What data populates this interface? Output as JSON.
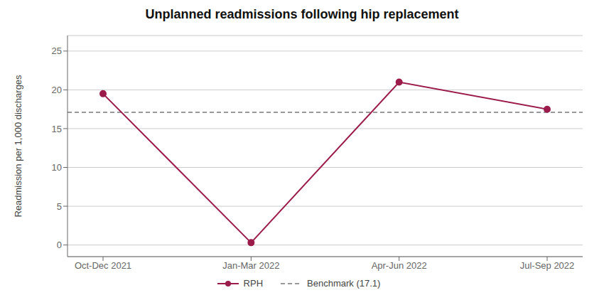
{
  "chart_data": {
    "type": "line",
    "title": "Unplanned readmissions following hip replacement",
    "categories": [
      "Oct-Dec 2021",
      "Jan-Mar 2022",
      "Apr-Jun 2022",
      "Jul-Sep 2022"
    ],
    "series": [
      {
        "name": "RPH",
        "color": "#9B1B4B",
        "values": [
          19.5,
          0.3,
          21.0,
          17.5
        ],
        "marker": "circle"
      }
    ],
    "reference_lines": [
      {
        "name": "Benchmark (17.1)",
        "value": 17.1,
        "color": "#999999",
        "line_style": "dashed"
      }
    ],
    "ylabel": "Readmission per 1,000 discharges",
    "ylim": [
      -1.5,
      27
    ],
    "yticks": [
      0,
      5,
      10,
      15,
      20,
      25
    ],
    "grid": true,
    "legend": "bottom"
  }
}
